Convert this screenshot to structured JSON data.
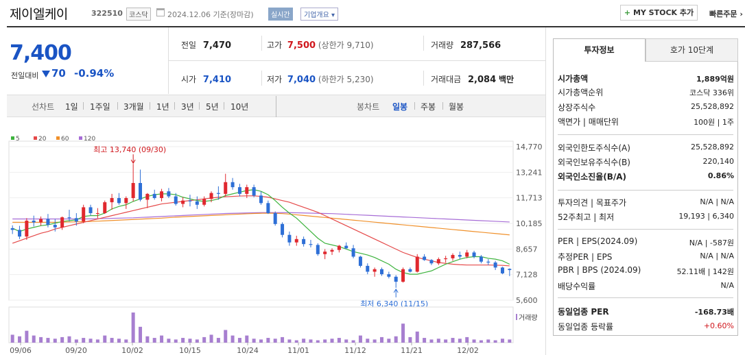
{
  "header": {
    "name": "제이엘케이",
    "code": "322510",
    "market": "코스닥",
    "date": "2024.12.06",
    "basis": "기준(장마감)",
    "realtime": "실시간",
    "overview": "기업개요",
    "mystock": "MY STOCK 추가",
    "quick_order": "빠른주문"
  },
  "price": {
    "current": "7,400",
    "change_label": "전일대비",
    "change": "70",
    "change_pct": "-0.94%"
  },
  "summary": [
    {
      "label": "전일",
      "value": "7,470"
    },
    {
      "label": "고가",
      "value": "7,500",
      "sub": "(상한가 9,710)"
    },
    {
      "label": "거래량",
      "value": "287,566"
    },
    {
      "label": "시가",
      "value": "7,410"
    },
    {
      "label": "저가",
      "value": "7,040",
      "sub": "(하한가 5,230)"
    },
    {
      "label": "거래대금",
      "value": "2,084",
      "unit": "백만"
    }
  ],
  "tabs": {
    "line": "선차트",
    "periods": [
      "1일",
      "1주일",
      "3개월",
      "1년",
      "3년",
      "5년",
      "10년"
    ],
    "candle": "봉차트",
    "candle_periods": [
      "일봉",
      "주봉",
      "월봉"
    ]
  },
  "chart_data": {
    "type": "candlestick",
    "ma_legend": [
      {
        "name": "5",
        "color": "#3db33d"
      },
      {
        "name": "20",
        "color": "#e54848"
      },
      {
        "name": "60",
        "color": "#f0902a"
      },
      {
        "name": "120",
        "color": "#a66cd6"
      }
    ],
    "y_ticks": [
      "14,770",
      "13,241",
      "11,713",
      "10,185",
      "8,657",
      "7,128",
      "5,600"
    ],
    "x_labels": [
      "09/06",
      "09/20",
      "10/02",
      "10/15",
      "10/24",
      "11/01",
      "11/12",
      "11/21",
      "12/02"
    ],
    "annotations": {
      "high": "최고 13,740 (09/30)",
      "low": "최저 6,340 (11/15)"
    },
    "volume_label": "거래량",
    "candles": [
      [
        9900,
        10070,
        9550,
        9800
      ],
      [
        9800,
        10040,
        9250,
        9400
      ],
      [
        9400,
        10500,
        9200,
        10350
      ],
      [
        10350,
        10650,
        10000,
        10250
      ],
      [
        10250,
        10600,
        10050,
        10450
      ],
      [
        10450,
        10750,
        9950,
        10100
      ],
      [
        10100,
        10450,
        9700,
        9950
      ],
      [
        9950,
        10600,
        9800,
        10550
      ],
      [
        10550,
        11000,
        10300,
        10500
      ],
      [
        10500,
        10800,
        10050,
        10300
      ],
      [
        10300,
        11300,
        10200,
        11150
      ],
      [
        11150,
        11300,
        10650,
        10800
      ],
      [
        10800,
        11100,
        10500,
        10800
      ],
      [
        10800,
        11550,
        10750,
        11450
      ],
      [
        11450,
        11950,
        11000,
        11700
      ],
      [
        11700,
        12000,
        11300,
        11400
      ],
      [
        11400,
        11800,
        11050,
        11700
      ],
      [
        11700,
        13740,
        11500,
        12600
      ],
      [
        12600,
        13400,
        11500,
        11600
      ],
      [
        11600,
        12000,
        11100,
        11950
      ],
      [
        11950,
        12200,
        11600,
        11700
      ],
      [
        11700,
        12250,
        11500,
        12100
      ],
      [
        12100,
        12300,
        11700,
        11800
      ],
      [
        11800,
        12000,
        11250,
        11350
      ],
      [
        11350,
        11750,
        11150,
        11550
      ],
      [
        11550,
        11900,
        11200,
        11500
      ],
      [
        11500,
        11800,
        11050,
        11300
      ],
      [
        11300,
        11800,
        11200,
        11650
      ],
      [
        11650,
        12100,
        11450,
        12000
      ],
      [
        12000,
        12400,
        11600,
        11950
      ],
      [
        11950,
        13150,
        11800,
        12650
      ],
      [
        12650,
        12900,
        12200,
        12350
      ],
      [
        12350,
        12550,
        11800,
        11950
      ],
      [
        11950,
        12500,
        11700,
        12350
      ],
      [
        12350,
        12500,
        11750,
        11850
      ],
      [
        11850,
        12100,
        11300,
        11400
      ],
      [
        11400,
        11550,
        10750,
        10800
      ],
      [
        10800,
        10900,
        10050,
        10150
      ],
      [
        10150,
        10250,
        9350,
        9500
      ],
      [
        9500,
        9700,
        8850,
        9050
      ],
      [
        9050,
        9450,
        8850,
        9250
      ],
      [
        9250,
        9400,
        8800,
        8950
      ],
      [
        8950,
        9200,
        8750,
        8900
      ],
      [
        8900,
        9000,
        8250,
        8350
      ],
      [
        8350,
        8650,
        8050,
        8500
      ],
      [
        8500,
        8700,
        8300,
        8600
      ],
      [
        8600,
        8900,
        8450,
        8850
      ],
      [
        8850,
        9050,
        8650,
        8700
      ],
      [
        8700,
        8900,
        8100,
        8200
      ],
      [
        8200,
        8250,
        7550,
        7650
      ],
      [
        7650,
        7800,
        7150,
        7300
      ],
      [
        7300,
        7550,
        7000,
        7450
      ],
      [
        7450,
        7550,
        7050,
        7150
      ],
      [
        7150,
        7300,
        6900,
        7000
      ],
      [
        7000,
        7100,
        6340,
        6700
      ],
      [
        6700,
        7550,
        6650,
        7450
      ],
      [
        7450,
        7550,
        7250,
        7300
      ],
      [
        7300,
        8350,
        7250,
        8200
      ],
      [
        8200,
        8350,
        7950,
        8000
      ],
      [
        8000,
        8050,
        7700,
        7800
      ],
      [
        7800,
        8150,
        7700,
        8050
      ],
      [
        8050,
        8250,
        7850,
        8100
      ],
      [
        8100,
        8400,
        7950,
        8300
      ],
      [
        8300,
        8500,
        8050,
        8200
      ],
      [
        8200,
        8600,
        8100,
        8450
      ],
      [
        8450,
        8550,
        8100,
        8200
      ],
      [
        8200,
        8300,
        7800,
        7900
      ],
      [
        7900,
        8050,
        7700,
        7850
      ],
      [
        7850,
        7950,
        7400,
        7550
      ],
      [
        7550,
        7600,
        7150,
        7200
      ],
      [
        7470,
        7500,
        7040,
        7400
      ]
    ],
    "ma5": [
      9900,
      9700,
      9850,
      9950,
      10050,
      10100,
      10200,
      10300,
      10350,
      10400,
      10600,
      10650,
      10650,
      10800,
      11050,
      11200,
      11300,
      11500,
      11650,
      11800,
      11900,
      11950,
      11950,
      11900,
      11750,
      11650,
      11550,
      11500,
      11550,
      11650,
      11850,
      11950,
      12050,
      12150,
      12200,
      12100,
      11900,
      11550,
      11150,
      10800,
      10500,
      10100,
      9700,
      9300,
      9000,
      8900,
      8800,
      8650,
      8500,
      8400,
      8300,
      8150,
      7950,
      7750,
      7450,
      7250,
      7150,
      7150,
      7250,
      7350,
      7550,
      7750,
      7900,
      8050,
      8150,
      8200,
      8200,
      8100,
      8050,
      7950,
      7750
    ],
    "ma20": [
      9000,
      9150,
      9300,
      9450,
      9600,
      9700,
      9850,
      9950,
      10050,
      10150,
      10250,
      10350,
      10450,
      10550,
      10650,
      10750,
      10850,
      10950,
      11050,
      11150,
      11250,
      11350,
      11400,
      11450,
      11500,
      11550,
      11600,
      11650,
      11700,
      11750,
      11780,
      11800,
      11820,
      11830,
      11830,
      11800,
      11750,
      11650,
      11550,
      11450,
      11300,
      11150,
      11000,
      10850,
      10650,
      10450,
      10250,
      10050,
      9850,
      9650,
      9450,
      9250,
      9050,
      8850,
      8650,
      8450,
      8300,
      8150,
      8050,
      7950,
      7850,
      7800,
      7750,
      7720,
      7700,
      7700,
      7700,
      7700,
      7690,
      7680,
      7650
    ],
    "ma60": [
      10250,
      10250,
      10250,
      10250,
      10250,
      10250,
      10250,
      10260,
      10270,
      10280,
      10290,
      10300,
      10320,
      10340,
      10360,
      10380,
      10400,
      10420,
      10440,
      10460,
      10480,
      10500,
      10530,
      10560,
      10580,
      10600,
      10620,
      10640,
      10660,
      10680,
      10700,
      10720,
      10740,
      10760,
      10780,
      10790,
      10800,
      10790,
      10770,
      10740,
      10700,
      10660,
      10620,
      10580,
      10540,
      10500,
      10460,
      10420,
      10380,
      10340,
      10300,
      10260,
      10220,
      10180,
      10140,
      10100,
      10060,
      10020,
      9980,
      9940,
      9900,
      9860,
      9820,
      9780,
      9740,
      9700,
      9660,
      9620,
      9580,
      9540,
      9500
    ],
    "ma120": [
      10450,
      10450,
      10450,
      10450,
      10450,
      10450,
      10450,
      10450,
      10450,
      10450,
      10450,
      10460,
      10470,
      10480,
      10490,
      10500,
      10510,
      10520,
      10540,
      10560,
      10580,
      10600,
      10620,
      10640,
      10660,
      10680,
      10700,
      10720,
      10740,
      10760,
      10780,
      10790,
      10800,
      10810,
      10820,
      10830,
      10830,
      10830,
      10830,
      10830,
      10820,
      10810,
      10800,
      10790,
      10780,
      10770,
      10750,
      10730,
      10710,
      10690,
      10670,
      10650,
      10630,
      10610,
      10590,
      10570,
      10550,
      10530,
      10510,
      10490,
      10470,
      10450,
      10430,
      10410,
      10390,
      10370,
      10350,
      10330,
      10310,
      10290,
      10270
    ],
    "volume": [
      100,
      80,
      150,
      90,
      70,
      60,
      50,
      70,
      80,
      40,
      60,
      50,
      40,
      90,
      60,
      50,
      40,
      380,
      200,
      80,
      60,
      90,
      50,
      40,
      60,
      50,
      40,
      70,
      100,
      60,
      160,
      90,
      60,
      90,
      50,
      40,
      60,
      50,
      70,
      40,
      30,
      50,
      40,
      30,
      40,
      50,
      60,
      40,
      30,
      90,
      50,
      40,
      70,
      50,
      80,
      240,
      70,
      140,
      60,
      40,
      50,
      40,
      60,
      50,
      70,
      40,
      30,
      40,
      30,
      50,
      40
    ]
  },
  "right_panel": {
    "tabs": [
      "투자정보",
      "호가 10단계"
    ],
    "rows": [
      {
        "label": "시가총액",
        "value": "1,889억원",
        "bold": true
      },
      {
        "label": "시가총액순위",
        "value": "코스닥 336위"
      },
      {
        "label": "상장주식수",
        "value": "25,528,892"
      },
      {
        "label": "액면가 | 매매단위",
        "value": "100원 | 1주"
      },
      {
        "label": "외국인한도주식수(A)",
        "value": "25,528,892"
      },
      {
        "label": "외국인보유주식수(B)",
        "value": "220,140"
      },
      {
        "label": "외국인소진율(B/A)",
        "value": "0.86%",
        "bold": true
      },
      {
        "label": "투자의견 | 목표주가",
        "value": "N/A | N/A"
      },
      {
        "label": "52주최고 | 최저",
        "value": "19,193 | 6,340"
      },
      {
        "label": "PER | EPS(2024.09)",
        "value": "N/A | -587원"
      },
      {
        "label": "추정PER | EPS",
        "value": "N/A | N/A"
      },
      {
        "label": "PBR | BPS (2024.09)",
        "value": "52.11배 | 142원"
      },
      {
        "label": "배당수익률",
        "value": "N/A"
      },
      {
        "label": "동일업종 PER",
        "value": "-168.73배",
        "bold": true
      },
      {
        "label": "동일업종 등락률",
        "value": "+0.60%",
        "red": true
      }
    ]
  }
}
